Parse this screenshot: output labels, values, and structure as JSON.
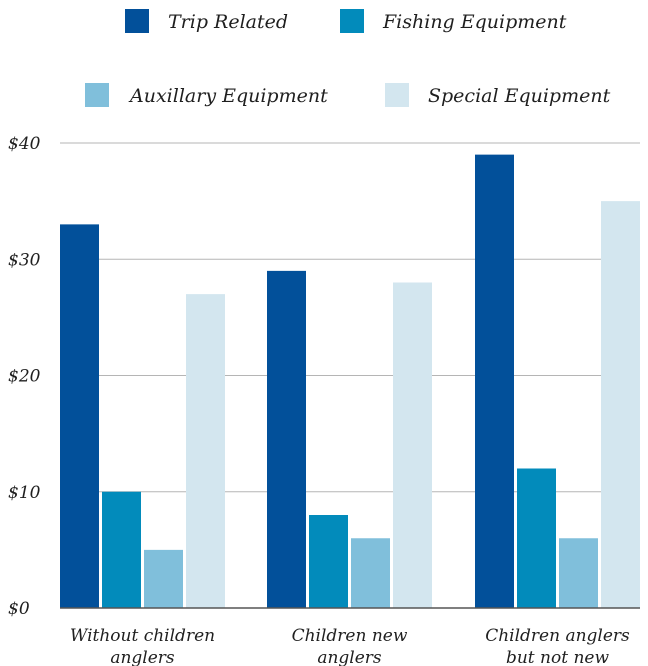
{
  "chart_data": {
    "type": "bar",
    "title": "",
    "xlabel": "",
    "ylabel": "",
    "categories": [
      [
        "Without children",
        "anglers"
      ],
      [
        "Children new",
        "anglers"
      ],
      [
        "Children anglers",
        "but not new"
      ]
    ],
    "series": [
      {
        "name": "Trip Related",
        "color": "#02509a",
        "values": [
          33,
          29,
          39
        ]
      },
      {
        "name": "Fishing Equipment",
        "color": "#028bbb",
        "values": [
          10,
          8,
          12
        ]
      },
      {
        "name": "Auxillary Equipment",
        "color": "#80bfdb",
        "values": [
          5,
          6,
          6
        ]
      },
      {
        "name": "Special Equipment",
        "color": "#d3e6ef",
        "values": [
          27,
          28,
          35
        ]
      }
    ],
    "ylim": [
      0,
      40
    ],
    "yticks": [
      0,
      10,
      20,
      30,
      40
    ],
    "ytick_labels": [
      "$0",
      "$10",
      "$20",
      "$30",
      "$40"
    ],
    "grid": true,
    "legend_position": "top"
  }
}
